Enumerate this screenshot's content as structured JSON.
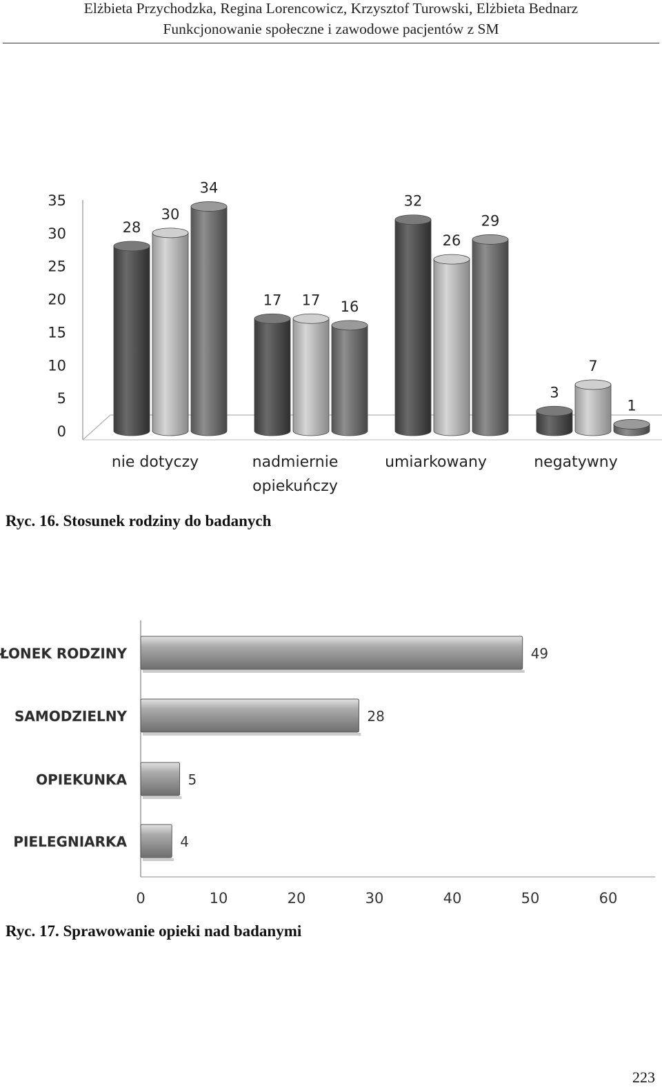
{
  "header": {
    "authors_line": "Elżbieta Przychodzka, Regina Lorencowicz, Krzysztof Turowski, Elżbieta Bednarz",
    "title_line": "Funkcjonowanie społeczne i zawodowe pacjentów z SM"
  },
  "figure1": {
    "caption": "Ryc. 16. Stosunek rodziny do badanych"
  },
  "figure2": {
    "caption": "Ryc. 17. Sprawowanie opieki nad badanymi"
  },
  "page_number": "223",
  "chart_data": [
    {
      "type": "bar",
      "style": "3d-cylinder",
      "categories": [
        "nie dotyczy",
        "nadmiernie opiekuńczy",
        "umiarkowany",
        "negatywny"
      ],
      "category_lines": [
        [
          "nie dotyczy"
        ],
        [
          "nadmiernie",
          "opiekuńczy"
        ],
        [
          "umiarkowany"
        ],
        [
          "negatywny"
        ]
      ],
      "series": [
        {
          "values": [
            28,
            17,
            32,
            3
          ],
          "color": "#5a5a5a"
        },
        {
          "values": [
            30,
            17,
            26,
            7
          ],
          "color": "#b8b8b8"
        },
        {
          "values": [
            34,
            16,
            29,
            1
          ],
          "color": "#7c7c7c"
        }
      ],
      "yticks": [
        0,
        5,
        10,
        15,
        20,
        25,
        30,
        35
      ],
      "ylim": [
        0,
        35
      ],
      "grid": false,
      "data_labels": true
    },
    {
      "type": "bar",
      "orientation": "horizontal",
      "categories": [
        "CZŁONEK RODZINY",
        "SAMODZIELNY",
        "OPIEKUNKA",
        "PIELEGNIARKA"
      ],
      "values": [
        49,
        28,
        5,
        4
      ],
      "xticks": [
        0,
        10,
        20,
        30,
        40,
        50,
        60
      ],
      "xlim": [
        0,
        60
      ],
      "grid": false,
      "data_labels": true,
      "bar_color": "#9a9a9a"
    }
  ]
}
